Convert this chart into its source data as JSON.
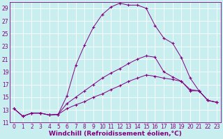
{
  "title": "",
  "xlabel": "Windchill (Refroidissement éolien,°C)",
  "ylabel": "",
  "bg_color": "#c8eef0",
  "grid_color": "#ffffff",
  "line_color": "#800080",
  "marker": "+",
  "xlim": [
    -0.5,
    23.5
  ],
  "ylim": [
    11,
    30
  ],
  "xticks": [
    0,
    1,
    2,
    3,
    4,
    5,
    6,
    7,
    8,
    9,
    10,
    11,
    12,
    13,
    14,
    15,
    16,
    17,
    18,
    19,
    20,
    21,
    22,
    23
  ],
  "yticks": [
    11,
    13,
    15,
    17,
    19,
    21,
    23,
    25,
    27,
    29
  ],
  "series": [
    {
      "x": [
        0,
        1,
        2,
        3,
        4,
        5,
        6,
        7,
        8,
        9,
        10,
        11,
        12,
        13,
        14,
        15,
        16,
        17,
        18,
        19,
        20,
        21,
        22,
        23
      ],
      "y": [
        13.2,
        12.0,
        12.5,
        12.5,
        12.2,
        12.3,
        15.2,
        20.0,
        23.2,
        26.0,
        28.0,
        29.2,
        29.8,
        29.5,
        29.5,
        29.0,
        26.3,
        24.3,
        23.5,
        21.2,
        null,
        null,
        null,
        null
      ]
    },
    {
      "x": [
        0,
        1,
        2,
        3,
        4,
        5,
        6,
        7,
        8,
        9,
        10,
        11,
        12,
        13,
        14,
        15,
        16,
        17,
        18,
        19,
        20,
        21,
        22,
        23
      ],
      "y": [
        13.2,
        12.0,
        12.5,
        12.5,
        12.2,
        12.3,
        14.0,
        15.0,
        16.0,
        17.0,
        18.0,
        18.8,
        19.5,
        20.3,
        21.0,
        21.5,
        21.3,
        null,
        null,
        null,
        null,
        null,
        null,
        null
      ]
    },
    {
      "x": [
        0,
        1,
        2,
        3,
        4,
        5,
        6,
        7,
        8,
        9,
        10,
        11,
        12,
        13,
        14,
        15,
        16,
        17,
        18,
        19,
        20,
        21,
        22,
        23
      ],
      "y": [
        13.2,
        12.0,
        12.5,
        12.5,
        12.2,
        12.3,
        13.2,
        13.8,
        14.3,
        15.0,
        15.5,
        16.2,
        16.8,
        17.5,
        18.0,
        18.5,
        18.3,
        18.0,
        17.8,
        17.5,
        16.0,
        null,
        null,
        null
      ]
    },
    {
      "x": [
        19,
        20,
        21,
        22,
        23
      ],
      "y": [
        21.2,
        null,
        null,
        null,
        null
      ]
    },
    {
      "x": [
        16,
        17,
        18,
        19,
        20,
        21,
        22,
        23
      ],
      "y": [
        21.3,
        19.0,
        18.2,
        17.5,
        16.2,
        null,
        null,
        null
      ]
    },
    {
      "x": [
        20,
        21,
        22,
        23
      ],
      "y": [
        16.0,
        17.8,
        14.5,
        14.2
      ]
    }
  ],
  "series2": [
    {
      "x": [
        0,
        1,
        2,
        3,
        4,
        5,
        6,
        7,
        8,
        9,
        10,
        11,
        12,
        13,
        14,
        15,
        16,
        17,
        18,
        19,
        20,
        21,
        22,
        23
      ],
      "y": [
        13.2,
        12.0,
        12.5,
        12.5,
        12.2,
        12.3,
        15.2,
        20.0,
        23.2,
        26.0,
        28.0,
        29.2,
        29.8,
        29.5,
        29.5,
        29.0,
        26.3,
        24.3,
        23.5,
        21.2,
        18.0,
        16.0,
        14.5,
        14.2
      ]
    },
    {
      "x": [
        0,
        1,
        2,
        3,
        4,
        5,
        6,
        7,
        8,
        9,
        10,
        11,
        12,
        13,
        14,
        15,
        16,
        17,
        18,
        19,
        20,
        21,
        22,
        23
      ],
      "y": [
        13.2,
        12.0,
        12.5,
        12.5,
        12.2,
        12.3,
        14.0,
        15.0,
        16.0,
        17.0,
        18.0,
        18.8,
        19.5,
        20.3,
        21.0,
        21.5,
        21.3,
        19.0,
        18.2,
        17.5,
        16.2,
        16.0,
        14.5,
        14.2
      ]
    },
    {
      "x": [
        0,
        1,
        2,
        3,
        4,
        5,
        6,
        7,
        8,
        9,
        10,
        11,
        12,
        13,
        14,
        15,
        16,
        17,
        18,
        19,
        20,
        21,
        22,
        23
      ],
      "y": [
        13.2,
        12.0,
        12.5,
        12.5,
        12.2,
        12.3,
        13.2,
        13.8,
        14.3,
        15.0,
        15.5,
        16.2,
        16.8,
        17.5,
        18.0,
        18.5,
        18.3,
        18.0,
        17.8,
        17.5,
        16.0,
        16.0,
        14.5,
        14.2
      ]
    }
  ],
  "font_color": "#800080",
  "tick_fontsize": 5.5,
  "xlabel_fontsize": 6.5
}
